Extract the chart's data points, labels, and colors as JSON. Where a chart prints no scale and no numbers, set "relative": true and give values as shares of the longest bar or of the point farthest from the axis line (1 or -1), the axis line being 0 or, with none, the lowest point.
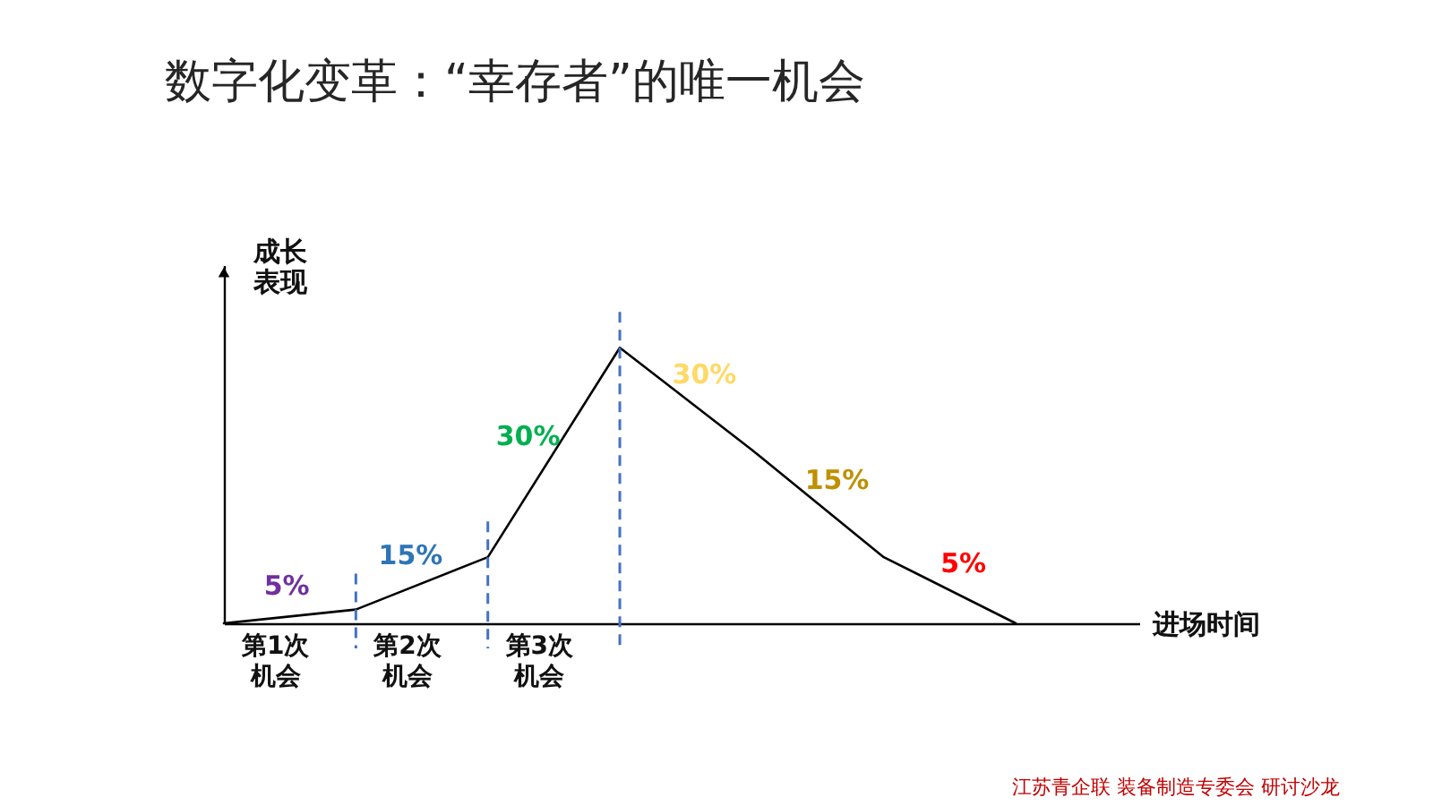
{
  "chart_data": {
    "type": "line",
    "title": "数字化变革：“幸存者”的唯一机会",
    "xlabel": "进场时间",
    "ylabel": "成长表现",
    "relative": true,
    "categories": [
      null,
      null,
      null,
      null,
      null,
      null,
      null
    ],
    "series": [
      {
        "color": "#000000",
        "values": [
          0,
          0.05,
          0.24,
          1,
          0.63,
          0.24,
          0
        ]
      }
    ],
    "annotations": [
      "5%",
      "15%",
      "30%",
      "30%",
      "15%",
      "5%",
      "第1次机会",
      "第2次机会",
      "第3次机会",
      "江苏青企联 装备制造专委会 研讨沙龙"
    ]
  }
}
